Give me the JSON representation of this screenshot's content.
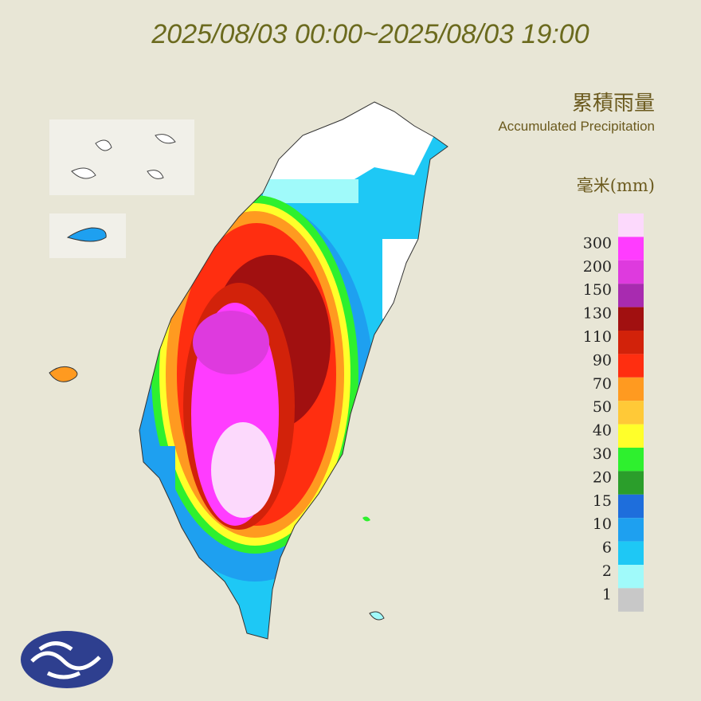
{
  "header": {
    "title": "2025/08/03 00:00~2025/08/03 19:00"
  },
  "legend": {
    "title": "累積雨量",
    "subtitle": "Accumulated Precipitation",
    "unit": "毫米(mm)",
    "items": [
      {
        "color": "#fcd9fc"
      },
      {
        "label": "300",
        "color": "#ff3cff"
      },
      {
        "label": "200",
        "color": "#de3ade"
      },
      {
        "label": "150",
        "color": "#a82bb0"
      },
      {
        "label": "130",
        "color": "#a11010"
      },
      {
        "label": "110",
        "color": "#d2220a"
      },
      {
        "label": "90",
        "color": "#ff2e10"
      },
      {
        "label": "70",
        "color": "#ff9a20"
      },
      {
        "label": "50",
        "color": "#ffc937"
      },
      {
        "label": "40",
        "color": "#ffff2a"
      },
      {
        "label": "30",
        "color": "#2ef02e"
      },
      {
        "label": "20",
        "color": "#2b9e2b"
      },
      {
        "label": "15",
        "color": "#1e6edc"
      },
      {
        "label": "10",
        "color": "#1ea0f0"
      },
      {
        "label": "6",
        "color": "#1ec8f5"
      },
      {
        "label": "2",
        "color": "#a0fafa"
      },
      {
        "label": "1",
        "color": "#c8c8c8"
      }
    ]
  }
}
